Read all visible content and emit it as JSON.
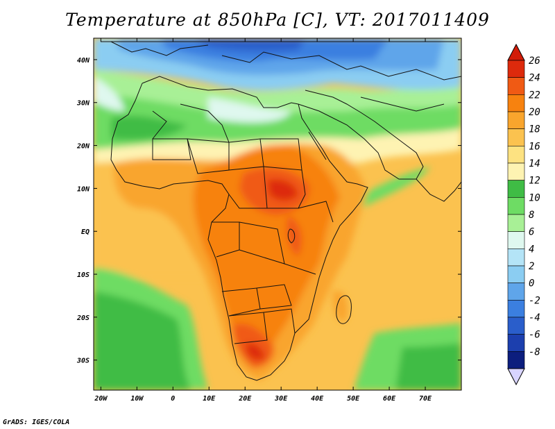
{
  "title": "Temperature at 850hPa [C], VT: 2017011409",
  "credit": "GrADS: IGES/COLA",
  "map": {
    "lon_labels": [
      "20W",
      "10W",
      "0",
      "10E",
      "20E",
      "30E",
      "40E",
      "50E",
      "60E",
      "70E"
    ],
    "lat_labels": [
      "40N",
      "30N",
      "20N",
      "10N",
      "EQ",
      "10S",
      "20S",
      "30S"
    ],
    "lon_range": [
      -22,
      80
    ],
    "lat_range": [
      -37,
      45
    ]
  },
  "colorbar": {
    "unit": "C",
    "labels": [
      "26",
      "24",
      "22",
      "20",
      "18",
      "16",
      "14",
      "12",
      "10",
      "8",
      "6",
      "4",
      "2",
      "0",
      "-2",
      "-4",
      "-6",
      "-8"
    ],
    "colors": [
      "#dd2a0c",
      "#f05a14",
      "#f7820f",
      "#f9a52d",
      "#fbc24f",
      "#fde281",
      "#fef3b2",
      "#3fbc45",
      "#6edc64",
      "#a8f096",
      "#dff8ef",
      "#b4e4f7",
      "#8bcdf2",
      "#5fa5ea",
      "#3b7fe0",
      "#2a5ecb",
      "#1c3fae",
      "#0c1e7e"
    ],
    "over_color": "#d21c08",
    "under_color": "#d8d4ff"
  }
}
